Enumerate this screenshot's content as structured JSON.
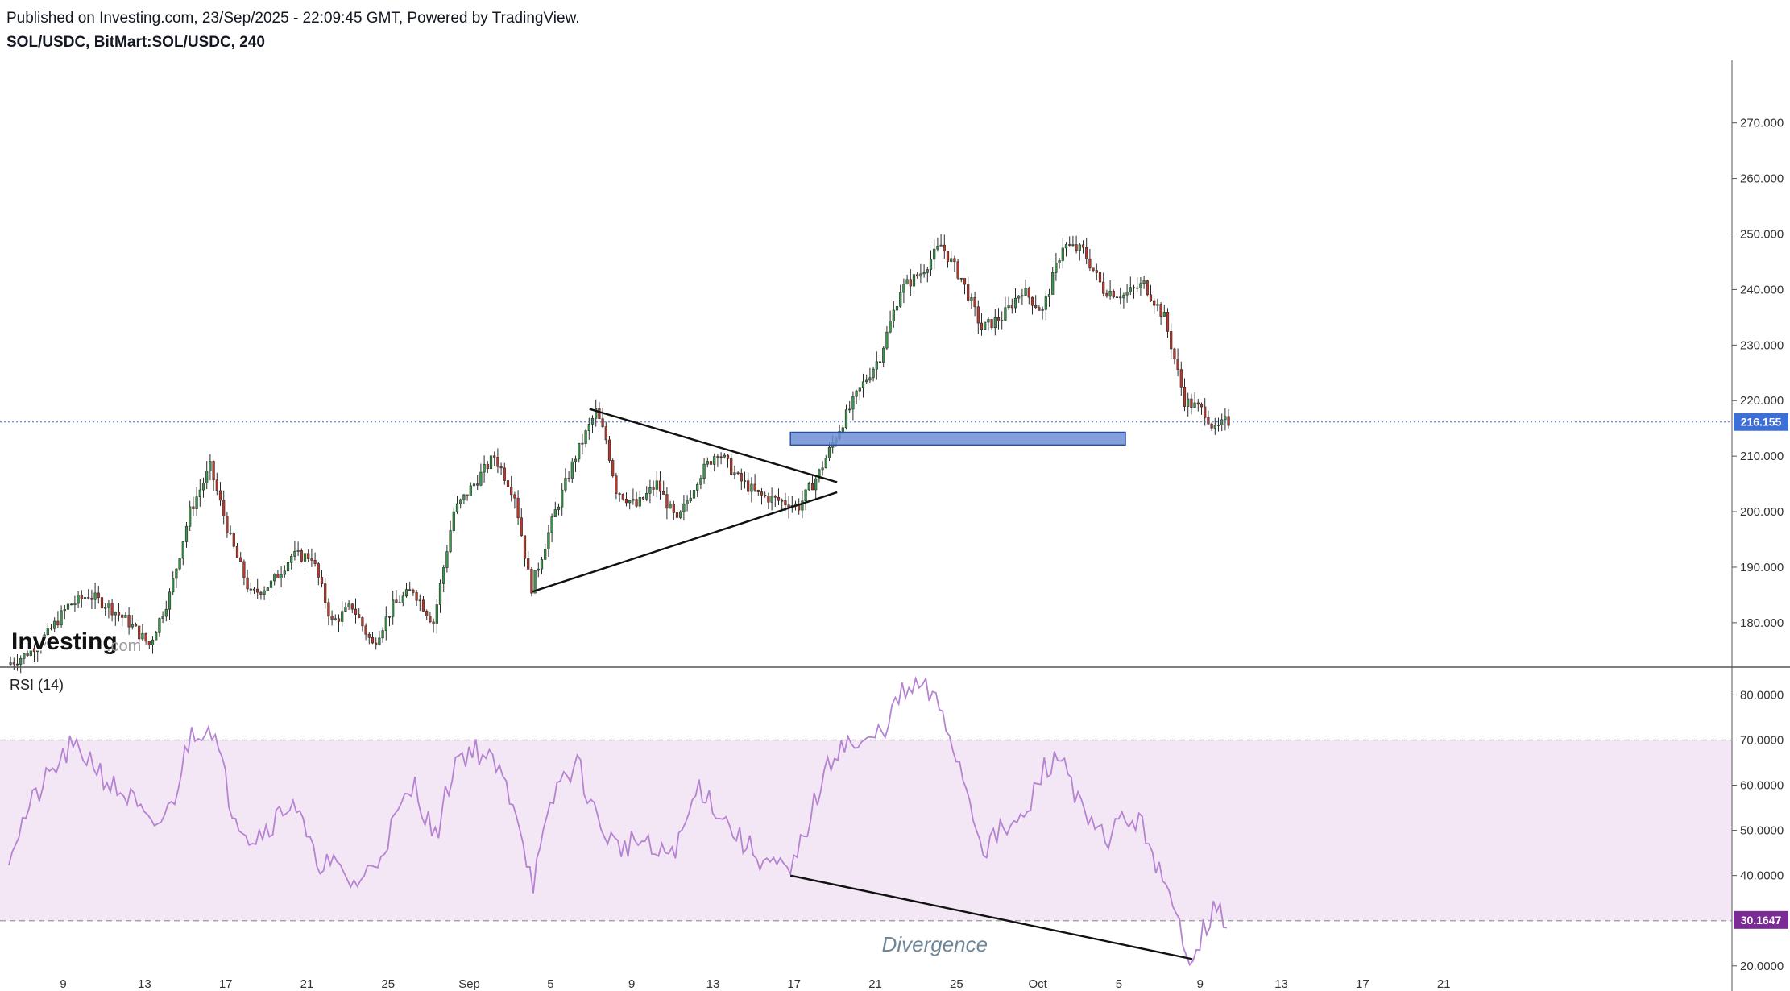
{
  "header": {
    "published": "Published on Investing.com, 23/Sep/2025 - 22:09:45 GMT, Powered by TradingView.",
    "symbol": "SOL/USDC, BitMart:SOL/USDC, 240"
  },
  "brand": {
    "logo_text": "Investing",
    "logo_suffix": ".com"
  },
  "colors": {
    "up": "#26a69a",
    "down": "#ef5350",
    "candle_up": "#3c9a4e",
    "candle_down": "#c0392b",
    "wick": "#333333",
    "rsi_line": "#b583d2",
    "rsi_band": "#f3e6f5",
    "last_price_bg": "#3d6fd8",
    "rsi_badge_bg": "#7b2a96",
    "support_zone": "#6f8fd6"
  },
  "chart_data": [
    {
      "type": "candlestick",
      "title": "SOL/USDC, BitMart:SOL/USDC, 240",
      "ylim": [
        172,
        282
      ],
      "y_ticks": [
        "180.000",
        "190.000",
        "200.000",
        "210.000",
        "220.000",
        "230.000",
        "240.000",
        "250.000",
        "260.000",
        "270.000"
      ],
      "x_ticks": [
        "9",
        "13",
        "17",
        "21",
        "25",
        "Sep",
        "5",
        "9",
        "13",
        "17",
        "21",
        "25",
        "Oct",
        "5",
        "9",
        "13",
        "17",
        "21"
      ],
      "last_price": "216.155",
      "last_price_value": 216.155,
      "support_zone": [
        212,
        214.3
      ],
      "triangle": {
        "upper": [
          [
            28.6,
            218.5
          ],
          [
            40.8,
            205.3
          ]
        ],
        "lower": [
          [
            25.8,
            185.6
          ],
          [
            40.8,
            203.5
          ]
        ]
      },
      "price_path": [
        [
          0,
          172.5
        ],
        [
          0.8,
          174
        ],
        [
          2,
          178
        ],
        [
          3,
          183
        ],
        [
          4,
          185
        ],
        [
          5,
          183
        ],
        [
          6,
          180
        ],
        [
          7,
          176
        ],
        [
          8,
          185
        ],
        [
          9,
          200
        ],
        [
          10,
          208
        ],
        [
          11,
          195
        ],
        [
          12,
          185
        ],
        [
          13,
          187
        ],
        [
          14,
          192
        ],
        [
          15,
          192
        ],
        [
          16,
          180
        ],
        [
          17,
          183
        ],
        [
          18,
          176
        ],
        [
          19,
          183
        ],
        [
          20,
          186
        ],
        [
          21,
          180
        ],
        [
          22,
          200
        ],
        [
          23,
          205
        ],
        [
          24,
          210
        ],
        [
          25,
          203
        ],
        [
          25.8,
          186
        ],
        [
          27,
          200
        ],
        [
          28,
          210
        ],
        [
          29,
          218
        ],
        [
          29.5,
          213
        ],
        [
          30,
          204
        ],
        [
          31,
          201
        ],
        [
          32,
          205
        ],
        [
          33,
          198
        ],
        [
          34,
          206
        ],
        [
          35,
          211
        ],
        [
          36,
          206
        ],
        [
          37,
          203
        ],
        [
          38,
          202
        ],
        [
          39,
          201
        ],
        [
          40,
          207
        ],
        [
          41,
          215
        ],
        [
          42,
          222
        ],
        [
          43,
          228
        ],
        [
          44,
          240
        ],
        [
          45,
          243
        ],
        [
          46,
          248
        ],
        [
          47,
          242
        ],
        [
          48,
          233
        ],
        [
          49,
          235
        ],
        [
          50,
          240
        ],
        [
          51,
          236
        ],
        [
          52,
          248
        ],
        [
          53,
          247
        ],
        [
          54,
          240
        ],
        [
          55,
          239
        ],
        [
          56,
          241
        ],
        [
          57,
          235
        ],
        [
          58,
          220
        ],
        [
          59,
          218
        ],
        [
          59.5,
          214.5
        ],
        [
          60,
          216.2
        ]
      ]
    },
    {
      "type": "line",
      "title": "RSI (14)",
      "ylim": [
        18,
        84
      ],
      "y_ticks": [
        "20.0000",
        "40.0000",
        "50.0000",
        "60.0000",
        "70.0000",
        "80.0000"
      ],
      "overbought": "70.0000",
      "oversold": 30,
      "last_value": "30.1647",
      "annotation": "Divergence",
      "divergence_line": [
        [
          38.5,
          40
        ],
        [
          58.3,
          21.5
        ]
      ],
      "rsi_path": [
        [
          0,
          45
        ],
        [
          1,
          55
        ],
        [
          2,
          62
        ],
        [
          3,
          68
        ],
        [
          4,
          66
        ],
        [
          5,
          60
        ],
        [
          6,
          57
        ],
        [
          7,
          50
        ],
        [
          8,
          55
        ],
        [
          9,
          72
        ],
        [
          10,
          73
        ],
        [
          11,
          55
        ],
        [
          12,
          48
        ],
        [
          13,
          52
        ],
        [
          14,
          57
        ],
        [
          15,
          44
        ],
        [
          16,
          42
        ],
        [
          17,
          38
        ],
        [
          18,
          42
        ],
        [
          19,
          52
        ],
        [
          20,
          60
        ],
        [
          21,
          48
        ],
        [
          22,
          66
        ],
        [
          23,
          68
        ],
        [
          24,
          64
        ],
        [
          25,
          55
        ],
        [
          25.8,
          38
        ],
        [
          27,
          60
        ],
        [
          28,
          65
        ],
        [
          29,
          52
        ],
        [
          30,
          46
        ],
        [
          31,
          48
        ],
        [
          32,
          44
        ],
        [
          33,
          47
        ],
        [
          34,
          60
        ],
        [
          35,
          54
        ],
        [
          36,
          48
        ],
        [
          37,
          44
        ],
        [
          38.5,
          40
        ],
        [
          40,
          60
        ],
        [
          41,
          70
        ],
        [
          42,
          68
        ],
        [
          43,
          72
        ],
        [
          44,
          80
        ],
        [
          45,
          82
        ],
        [
          46,
          76
        ],
        [
          47,
          62
        ],
        [
          48,
          46
        ],
        [
          49,
          50
        ],
        [
          50,
          52
        ],
        [
          51,
          64
        ],
        [
          52,
          66
        ],
        [
          53,
          52
        ],
        [
          54,
          48
        ],
        [
          55,
          53
        ],
        [
          56,
          50
        ],
        [
          57,
          36
        ],
        [
          58.3,
          21.5
        ],
        [
          58.8,
          28
        ],
        [
          59.4,
          32
        ],
        [
          60,
          30.2
        ]
      ]
    }
  ]
}
